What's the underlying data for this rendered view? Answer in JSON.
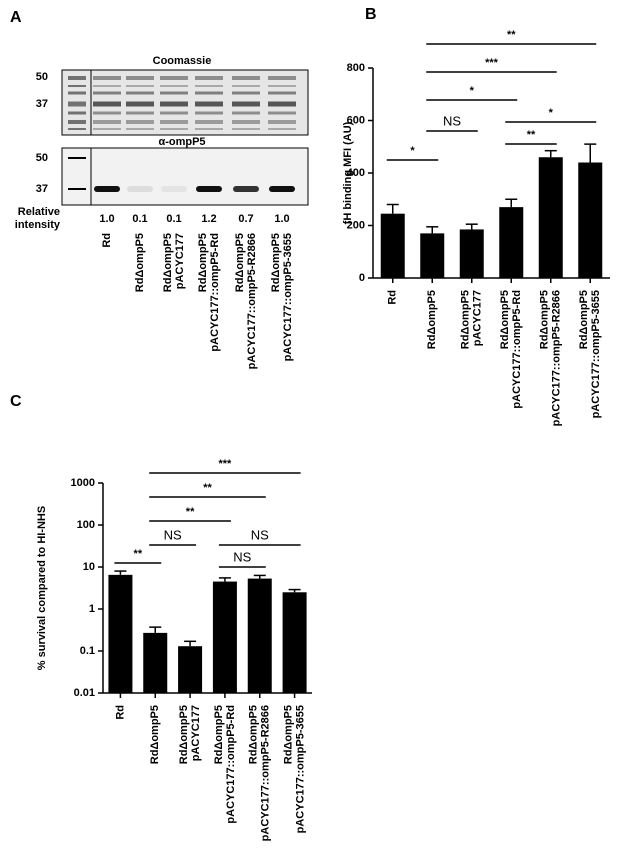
{
  "gel": {
    "panel": "A",
    "title": "Coomassie",
    "blot_title": "α-ompP5",
    "markers": [
      "50",
      "37"
    ],
    "intensity_label": [
      "Relative",
      "intensity"
    ],
    "intensities": [
      "1.0",
      "0.1",
      "0.1",
      "1.2",
      "0.7",
      "1.0"
    ],
    "lanes": [
      [
        "Rd"
      ],
      [
        "RdΔompP5"
      ],
      [
        "RdΔompP5",
        "pACYC177"
      ],
      [
        "RdΔompP5",
        "pACYC177::ompP5-Rd"
      ],
      [
        "RdΔompP5",
        "pACYC177::ompP5-R2866"
      ],
      [
        "RdΔompP5",
        "pACYC177::ompP5-3655"
      ]
    ]
  },
  "chart_data": [
    {
      "type": "bar",
      "panel": "B",
      "ylabel": "fH binding MFI (AU)",
      "categories": [
        [
          "Rd"
        ],
        [
          "RdΔompP5"
        ],
        [
          "RdΔompP5",
          "pACYC177"
        ],
        [
          "RdΔompP5",
          "pACYC177::ompP5-Rd"
        ],
        [
          "RdΔompP5",
          "pACYC177::ompP5-R2866"
        ],
        [
          "RdΔompP5",
          "pACYC177::ompP5-3655"
        ]
      ],
      "values": [
        245,
        170,
        185,
        270,
        460,
        440
      ],
      "errors": [
        35,
        25,
        20,
        30,
        25,
        70
      ],
      "color": "#000000",
      "ylim": [
        0,
        800
      ],
      "yticks": [
        0,
        200,
        400,
        600,
        800
      ],
      "log_scale": false,
      "comparisons": [
        {
          "from": 0,
          "to": 1,
          "label": "*"
        },
        {
          "from": 1,
          "to": 2,
          "label": "NS"
        },
        {
          "from": 1,
          "to": 3,
          "label": "*"
        },
        {
          "from": 1,
          "to": 4,
          "label": "***"
        },
        {
          "from": 1,
          "to": 5,
          "label": "**"
        },
        {
          "from": 3,
          "to": 4,
          "label": "**"
        },
        {
          "from": 3,
          "to": 5,
          "label": "*"
        }
      ]
    },
    {
      "type": "bar",
      "panel": "C",
      "ylabel": "% survival compared to HI-NHS",
      "categories": [
        [
          "Rd"
        ],
        [
          "RdΔompP5"
        ],
        [
          "RdΔompP5",
          "pACYC177"
        ],
        [
          "RdΔompP5",
          "pACYC177::ompP5-Rd"
        ],
        [
          "RdΔompP5",
          "pACYC177::ompP5-R2866"
        ],
        [
          "RdΔompP5",
          "pACYC177::ompP5-3655"
        ]
      ],
      "values": [
        6.5,
        0.27,
        0.13,
        4.5,
        5.3,
        2.5
      ],
      "errors": [
        1.5,
        0.1,
        0.04,
        1,
        1,
        0.4
      ],
      "color": "#000000",
      "ylim": [
        0.01,
        1000
      ],
      "yticks": [
        0.01,
        0.1,
        1,
        10,
        100,
        1000
      ],
      "log_scale": true,
      "comparisons": [
        {
          "from": 0,
          "to": 1,
          "label": "**"
        },
        {
          "from": 1,
          "to": 2,
          "label": "NS"
        },
        {
          "from": 1,
          "to": 3,
          "label": "**"
        },
        {
          "from": 1,
          "to": 4,
          "label": "**"
        },
        {
          "from": 1,
          "to": 5,
          "label": "***"
        },
        {
          "from": 3,
          "to": 4,
          "label": "NS"
        },
        {
          "from": 3,
          "to": 5,
          "label": "NS"
        }
      ]
    }
  ]
}
